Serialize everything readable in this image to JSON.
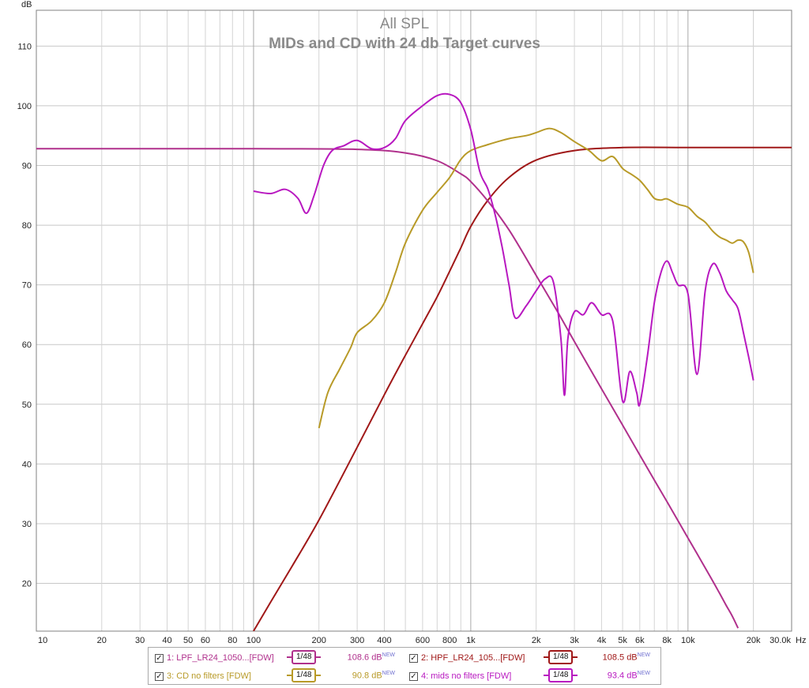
{
  "chart_data": {
    "type": "line",
    "title": "All SPL",
    "subtitle": "MIDs and CD with 24 db Target curves",
    "ylabel": "dB",
    "xlabel_unit": "Hz",
    "x_scale": "log",
    "xlim": [
      10,
      30000
    ],
    "ylim": [
      12,
      116
    ],
    "grid": true,
    "y_ticks": [
      "110",
      "100",
      "90",
      "80",
      "70",
      "60",
      "50",
      "40",
      "30",
      "20"
    ],
    "y_tick_values": [
      110,
      100,
      90,
      80,
      70,
      60,
      50,
      40,
      30,
      20
    ],
    "x_ticks": [
      {
        "v": 10,
        "label": "10"
      },
      {
        "v": 20,
        "label": "20"
      },
      {
        "v": 30,
        "label": "30"
      },
      {
        "v": 40,
        "label": "40"
      },
      {
        "v": 50,
        "label": "50"
      },
      {
        "v": 60,
        "label": "60"
      },
      {
        "v": 80,
        "label": "80"
      },
      {
        "v": 100,
        "label": "100"
      },
      {
        "v": 200,
        "label": "200"
      },
      {
        "v": 300,
        "label": "300"
      },
      {
        "v": 400,
        "label": "400"
      },
      {
        "v": 600,
        "label": "600"
      },
      {
        "v": 800,
        "label": "800"
      },
      {
        "v": 1000,
        "label": "1k"
      },
      {
        "v": 2000,
        "label": "2k"
      },
      {
        "v": 3000,
        "label": "3k"
      },
      {
        "v": 4000,
        "label": "4k"
      },
      {
        "v": 5000,
        "label": "5k"
      },
      {
        "v": 6000,
        "label": "6k"
      },
      {
        "v": 8000,
        "label": "8k"
      },
      {
        "v": 10000,
        "label": "10k"
      },
      {
        "v": 20000,
        "label": "20k"
      },
      {
        "v": 30000,
        "label": "30.0k"
      }
    ],
    "legend_position": "bottom",
    "series": [
      {
        "name": "1: LPF_LR24_1050...[FDW]",
        "color": "#b0308c",
        "smoothing": "1/48",
        "level": "108.6 dB",
        "level_tag": "NEW",
        "points": [
          [
            10,
            92.8
          ],
          [
            100,
            92.8
          ],
          [
            300,
            92.7
          ],
          [
            500,
            92.1
          ],
          [
            700,
            90.8
          ],
          [
            900,
            88.6
          ],
          [
            1000,
            87.3
          ],
          [
            1200,
            84.0
          ],
          [
            1500,
            79.2
          ],
          [
            2000,
            71.6
          ],
          [
            2500,
            65.6
          ],
          [
            3000,
            60.5
          ],
          [
            4000,
            52.6
          ],
          [
            5000,
            46.5
          ],
          [
            6000,
            41.5
          ],
          [
            7000,
            37.3
          ],
          [
            8000,
            33.7
          ],
          [
            9000,
            30.5
          ],
          [
            10000,
            27.6
          ],
          [
            11000,
            25.0
          ],
          [
            12000,
            22.6
          ],
          [
            13000,
            20.4
          ],
          [
            14000,
            18.3
          ],
          [
            15000,
            16.3
          ],
          [
            16000,
            14.5
          ],
          [
            17000,
            12.5
          ]
        ]
      },
      {
        "name": "2: HPF_LR24_105...[FDW]",
        "color": "#a01818",
        "smoothing": "1/48",
        "level": "108.5 dB",
        "level_tag": "NEW",
        "points": [
          [
            100,
            12
          ],
          [
            120,
            16.9
          ],
          [
            150,
            22.8
          ],
          [
            200,
            30.6
          ],
          [
            300,
            42.8
          ],
          [
            400,
            51.6
          ],
          [
            500,
            58.2
          ],
          [
            600,
            63.5
          ],
          [
            700,
            68.0
          ],
          [
            800,
            72.3
          ],
          [
            900,
            76.2
          ],
          [
            1000,
            79.8
          ],
          [
            1200,
            84.2
          ],
          [
            1500,
            88.0
          ],
          [
            2000,
            90.9
          ],
          [
            3000,
            92.5
          ],
          [
            5000,
            93.0
          ],
          [
            10000,
            93.0
          ],
          [
            20000,
            93.0
          ],
          [
            30000,
            93.0
          ]
        ]
      },
      {
        "name": "3: CD no filters [FDW]",
        "color": "#b89a28",
        "smoothing": "1/48",
        "level": "90.8 dB",
        "level_tag": "NEW",
        "points": [
          [
            200,
            46
          ],
          [
            220,
            52
          ],
          [
            250,
            56
          ],
          [
            280,
            59.5
          ],
          [
            300,
            62
          ],
          [
            350,
            64
          ],
          [
            400,
            67
          ],
          [
            450,
            72
          ],
          [
            500,
            77
          ],
          [
            600,
            82.5
          ],
          [
            700,
            85.5
          ],
          [
            800,
            88
          ],
          [
            900,
            91
          ],
          [
            1000,
            92.5
          ],
          [
            1200,
            93.5
          ],
          [
            1500,
            94.5
          ],
          [
            1800,
            95
          ],
          [
            2000,
            95.5
          ],
          [
            2300,
            96.2
          ],
          [
            2600,
            95.5
          ],
          [
            3000,
            94
          ],
          [
            3500,
            92.5
          ],
          [
            4000,
            90.8
          ],
          [
            4500,
            91.5
          ],
          [
            5000,
            89.5
          ],
          [
            5500,
            88.5
          ],
          [
            6000,
            87.5
          ],
          [
            6500,
            86
          ],
          [
            7000,
            84.5
          ],
          [
            7500,
            84.2
          ],
          [
            8000,
            84.4
          ],
          [
            9000,
            83.5
          ],
          [
            10000,
            83
          ],
          [
            11000,
            81.5
          ],
          [
            12000,
            80.5
          ],
          [
            13000,
            79
          ],
          [
            14000,
            78
          ],
          [
            15000,
            77.5
          ],
          [
            16000,
            77
          ],
          [
            17000,
            77.5
          ],
          [
            18000,
            77.2
          ],
          [
            19000,
            75.5
          ],
          [
            20000,
            72
          ]
        ]
      },
      {
        "name": "4: mids no filters [FDW]",
        "color": "#b818c0",
        "smoothing": "1/48",
        "level": "93.4 dB",
        "level_tag": "NEW",
        "points": [
          [
            100,
            85.7
          ],
          [
            120,
            85.3
          ],
          [
            140,
            86
          ],
          [
            160,
            84.5
          ],
          [
            175,
            82
          ],
          [
            190,
            85
          ],
          [
            210,
            90
          ],
          [
            230,
            92.5
          ],
          [
            260,
            93.3
          ],
          [
            300,
            94.2
          ],
          [
            350,
            92.8
          ],
          [
            400,
            93
          ],
          [
            450,
            94.5
          ],
          [
            500,
            97.5
          ],
          [
            600,
            100
          ],
          [
            700,
            101.7
          ],
          [
            800,
            101.9
          ],
          [
            900,
            100.5
          ],
          [
            1000,
            96
          ],
          [
            1100,
            89
          ],
          [
            1200,
            86
          ],
          [
            1300,
            81.5
          ],
          [
            1400,
            76
          ],
          [
            1500,
            70
          ],
          [
            1600,
            64.5
          ],
          [
            1800,
            66.5
          ],
          [
            2000,
            69
          ],
          [
            2200,
            71
          ],
          [
            2400,
            70.5
          ],
          [
            2600,
            61
          ],
          [
            2700,
            51.5
          ],
          [
            2800,
            61
          ],
          [
            3000,
            65.5
          ],
          [
            3300,
            65
          ],
          [
            3600,
            67
          ],
          [
            4000,
            65
          ],
          [
            4500,
            64
          ],
          [
            5000,
            50.5
          ],
          [
            5400,
            55.5
          ],
          [
            5800,
            52
          ],
          [
            6000,
            50
          ],
          [
            6500,
            58
          ],
          [
            7000,
            67
          ],
          [
            7500,
            72
          ],
          [
            8000,
            74
          ],
          [
            8500,
            72
          ],
          [
            9000,
            70
          ],
          [
            10000,
            68.5
          ],
          [
            11000,
            55
          ],
          [
            12000,
            69
          ],
          [
            13000,
            73.5
          ],
          [
            14000,
            72
          ],
          [
            15000,
            69
          ],
          [
            16000,
            67.5
          ],
          [
            17000,
            66
          ],
          [
            18000,
            62
          ],
          [
            19000,
            58
          ],
          [
            20000,
            54
          ]
        ]
      }
    ]
  }
}
